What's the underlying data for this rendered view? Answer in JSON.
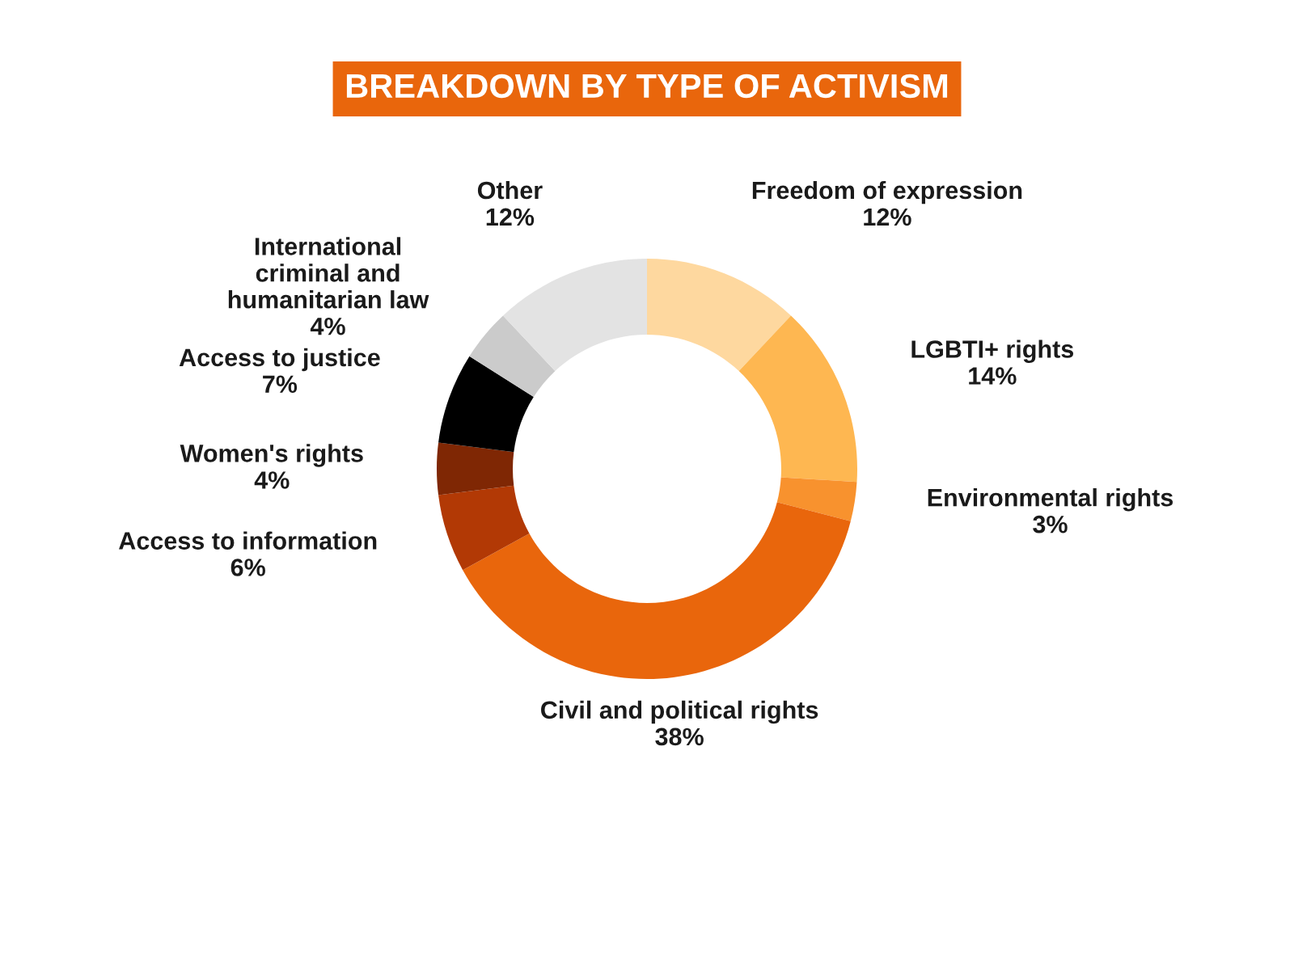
{
  "chart_data": {
    "type": "donut",
    "title": "BREAKDOWN BY TYPE OF ACTIVISM",
    "categories": [
      "Freedom of expression",
      "LGBTI+ rights",
      "Environmental rights",
      "Civil and political rights",
      "Access to information",
      "Women's rights",
      "Access to justice",
      "International criminal and humanitarian law",
      "Other"
    ],
    "values": [
      12,
      14,
      3,
      38,
      6,
      4,
      7,
      4,
      12
    ],
    "value_labels": [
      "12%",
      "14%",
      "3%",
      "38%",
      "6%",
      "4%",
      "7%",
      "4%",
      "12%"
    ],
    "colors": [
      "#fed89f",
      "#feb751",
      "#f8922e",
      "#e9660c",
      "#b23905",
      "#7f2704",
      "#000000",
      "#cbcbcb",
      "#e3e3e3"
    ]
  }
}
